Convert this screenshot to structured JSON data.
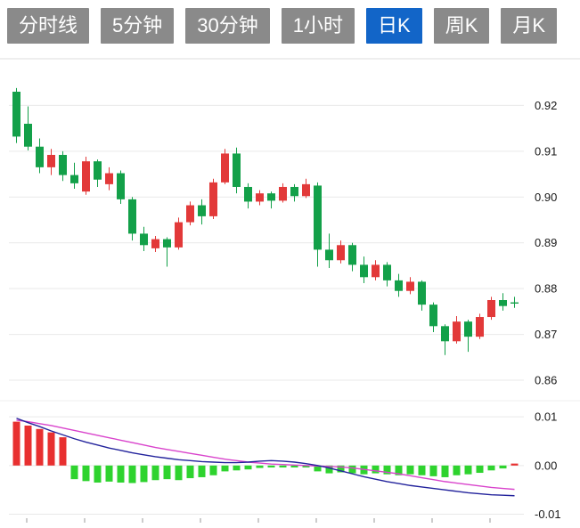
{
  "toolbar": {
    "tabs": [
      {
        "label": "分时线",
        "active": false
      },
      {
        "label": "5分钟",
        "active": false
      },
      {
        "label": "30分钟",
        "active": false
      },
      {
        "label": "1小时",
        "active": false
      },
      {
        "label": "日K",
        "active": true
      },
      {
        "label": "周K",
        "active": false
      },
      {
        "label": "月K",
        "active": false
      }
    ]
  },
  "colors": {
    "tab_inactive_bg": "#8a8a8a",
    "tab_active_bg": "#1265c8",
    "tab_text": "#ffffff",
    "grid": "#e9e9e9",
    "axis_text": "#1a1a1a",
    "divider": "#dcdcdc"
  },
  "chart_data": [
    {
      "type": "candlestick",
      "title": "",
      "xlabel": "",
      "ylabel": "",
      "legend": "none",
      "grid": "horizontal",
      "ytick_labels": [
        "0.92",
        "0.91",
        "0.90",
        "0.89",
        "0.88",
        "0.87",
        "0.86"
      ],
      "ylim": [
        0.8565,
        0.9265
      ],
      "up_color": "#e23939",
      "down_color": "#13a049",
      "candles_ohlc": [
        [
          0.923,
          0.9238,
          0.9118,
          0.9132
        ],
        [
          0.916,
          0.9198,
          0.9102,
          0.911
        ],
        [
          0.911,
          0.9128,
          0.9052,
          0.9065
        ],
        [
          0.9065,
          0.9105,
          0.9048,
          0.9092
        ],
        [
          0.9092,
          0.91,
          0.9035,
          0.9048
        ],
        [
          0.9048,
          0.9075,
          0.9018,
          0.903
        ],
        [
          0.9012,
          0.9088,
          0.9005,
          0.9078
        ],
        [
          0.9078,
          0.9082,
          0.9022,
          0.9038
        ],
        [
          0.9028,
          0.9065,
          0.9015,
          0.9052
        ],
        [
          0.9052,
          0.9058,
          0.8985,
          0.8995
        ],
        [
          0.8995,
          0.9,
          0.8905,
          0.892
        ],
        [
          0.892,
          0.8935,
          0.8882,
          0.8895
        ],
        [
          0.8888,
          0.8915,
          0.888,
          0.8908
        ],
        [
          0.8908,
          0.8912,
          0.8848,
          0.889
        ],
        [
          0.889,
          0.8955,
          0.8885,
          0.8945
        ],
        [
          0.8945,
          0.899,
          0.8938,
          0.8982
        ],
        [
          0.8982,
          0.8995,
          0.894,
          0.8958
        ],
        [
          0.8958,
          0.904,
          0.8952,
          0.9032
        ],
        [
          0.9032,
          0.9105,
          0.9028,
          0.9095
        ],
        [
          0.9095,
          0.9108,
          0.9008,
          0.9022
        ],
        [
          0.9022,
          0.903,
          0.8975,
          0.899
        ],
        [
          0.899,
          0.9015,
          0.8982,
          0.9008
        ],
        [
          0.9008,
          0.9012,
          0.8975,
          0.8992
        ],
        [
          0.8992,
          0.903,
          0.8988,
          0.9022
        ],
        [
          0.9022,
          0.9028,
          0.899,
          0.9002
        ],
        [
          0.9002,
          0.904,
          0.8998,
          0.9028
        ],
        [
          0.9025,
          0.9032,
          0.8848,
          0.8885
        ],
        [
          0.8885,
          0.892,
          0.8845,
          0.8862
        ],
        [
          0.8862,
          0.8905,
          0.8855,
          0.8895
        ],
        [
          0.8895,
          0.89,
          0.8838,
          0.8852
        ],
        [
          0.8852,
          0.887,
          0.8812,
          0.8825
        ],
        [
          0.8825,
          0.8862,
          0.8818,
          0.8852
        ],
        [
          0.8852,
          0.8858,
          0.8805,
          0.8818
        ],
        [
          0.8818,
          0.8832,
          0.8782,
          0.8795
        ],
        [
          0.8795,
          0.8825,
          0.8788,
          0.8815
        ],
        [
          0.8815,
          0.8818,
          0.8752,
          0.8765
        ],
        [
          0.8765,
          0.877,
          0.8705,
          0.8718
        ],
        [
          0.8718,
          0.8722,
          0.8655,
          0.8685
        ],
        [
          0.8685,
          0.874,
          0.868,
          0.8728
        ],
        [
          0.8728,
          0.8732,
          0.8662,
          0.8695
        ],
        [
          0.8695,
          0.8745,
          0.869,
          0.8738
        ],
        [
          0.8738,
          0.8782,
          0.8732,
          0.8775
        ],
        [
          0.8775,
          0.879,
          0.8752,
          0.8762
        ],
        [
          0.877,
          0.8782,
          0.8758,
          0.8768
        ]
      ]
    },
    {
      "type": "macd",
      "title": "",
      "legend": "none",
      "grid": "horizontal",
      "ytick_labels": [
        "0.01",
        "0.00",
        "-0.01"
      ],
      "ylim": [
        -0.011,
        0.0124
      ],
      "series": [
        {
          "name": "histogram",
          "type": "bar",
          "pos_color": "#e83030",
          "neg_color": "#2ed32e",
          "values": [
            0.009,
            0.0082,
            0.0075,
            0.0068,
            0.0058,
            -0.0028,
            -0.0032,
            -0.0035,
            -0.0033,
            -0.0035,
            -0.0036,
            -0.0034,
            -0.003,
            -0.0028,
            -0.003,
            -0.0026,
            -0.0024,
            -0.002,
            -0.0012,
            -0.001,
            -0.0008,
            -0.0005,
            -0.0004,
            -0.0003,
            -0.0004,
            -0.0003,
            -0.0012,
            -0.0016,
            -0.0014,
            -0.0016,
            -0.0018,
            -0.0016,
            -0.0018,
            -0.002,
            -0.0018,
            -0.002,
            -0.0022,
            -0.0024,
            -0.002,
            -0.0018,
            -0.0015,
            -0.001,
            -0.0006,
            0.0004
          ]
        },
        {
          "name": "dif",
          "type": "line",
          "color": "#d944cc",
          "values": [
            0.0093,
            0.009,
            0.0086,
            0.0082,
            0.0077,
            0.0072,
            0.0067,
            0.0062,
            0.0057,
            0.0052,
            0.0047,
            0.0042,
            0.0037,
            0.0033,
            0.0029,
            0.0025,
            0.0021,
            0.0017,
            0.0013,
            0.001,
            0.0007,
            0.0005,
            0.0003,
            0.0002,
            0.0001,
            0.0,
            -0.0001,
            -0.0002,
            -0.0003,
            -0.0005,
            -0.0008,
            -0.0011,
            -0.0014,
            -0.0017,
            -0.0021,
            -0.0025,
            -0.0029,
            -0.0033,
            -0.0036,
            -0.0039,
            -0.0042,
            -0.0045,
            -0.0047,
            -0.0049
          ]
        },
        {
          "name": "dea",
          "type": "line",
          "color": "#23239c",
          "values": [
            0.0097,
            0.0088,
            0.008,
            0.0071,
            0.0063,
            0.0055,
            0.0048,
            0.0042,
            0.0036,
            0.0031,
            0.0026,
            0.0022,
            0.0018,
            0.0015,
            0.0012,
            0.001,
            0.0008,
            0.0007,
            0.0006,
            0.0006,
            0.0007,
            0.0009,
            0.001,
            0.0009,
            0.0007,
            0.0004,
            0.0,
            -0.0005,
            -0.0011,
            -0.0017,
            -0.0023,
            -0.0028,
            -0.0033,
            -0.0037,
            -0.0041,
            -0.0044,
            -0.0047,
            -0.005,
            -0.0053,
            -0.0056,
            -0.0058,
            -0.006,
            -0.0061,
            -0.0062
          ]
        }
      ]
    }
  ]
}
